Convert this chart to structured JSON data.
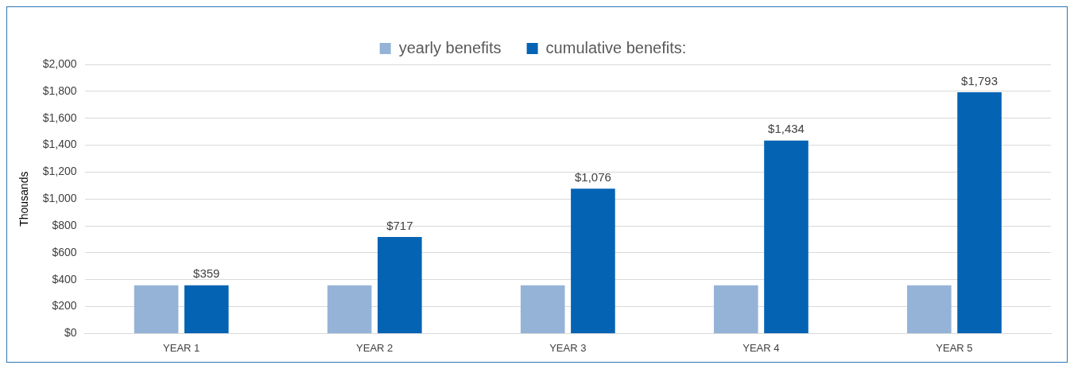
{
  "chart_data": {
    "type": "bar",
    "ylabel": "Thousands",
    "categories": [
      "YEAR 1",
      "YEAR 2",
      "YEAR 3",
      "YEAR 4",
      "YEAR 5"
    ],
    "series": [
      {
        "name": "yearly benefits",
        "color": "#95b3d7",
        "values": [
          359,
          359,
          359,
          359,
          359
        ]
      },
      {
        "name": "cumulative benefits:",
        "color": "#0563b4",
        "values": [
          359,
          717,
          1076,
          1434,
          1793
        ],
        "value_labels": [
          "$359",
          "$717",
          "$1,076",
          "$1,434",
          "$1,793"
        ]
      }
    ],
    "ylim": [
      0,
      2000
    ],
    "yticks": [
      {
        "value": 0,
        "label": "$0"
      },
      {
        "value": 200,
        "label": "$200"
      },
      {
        "value": 400,
        "label": "$400"
      },
      {
        "value": 600,
        "label": "$600"
      },
      {
        "value": 800,
        "label": "$800"
      },
      {
        "value": 1000,
        "label": "$1,000"
      },
      {
        "value": 1200,
        "label": "$1,200"
      },
      {
        "value": 1400,
        "label": "$1,400"
      },
      {
        "value": 1600,
        "label": "$1,600"
      },
      {
        "value": 1800,
        "label": "$1,800"
      },
      {
        "value": 2000,
        "label": "$2,000"
      }
    ],
    "grid": "y",
    "legend": "top"
  }
}
